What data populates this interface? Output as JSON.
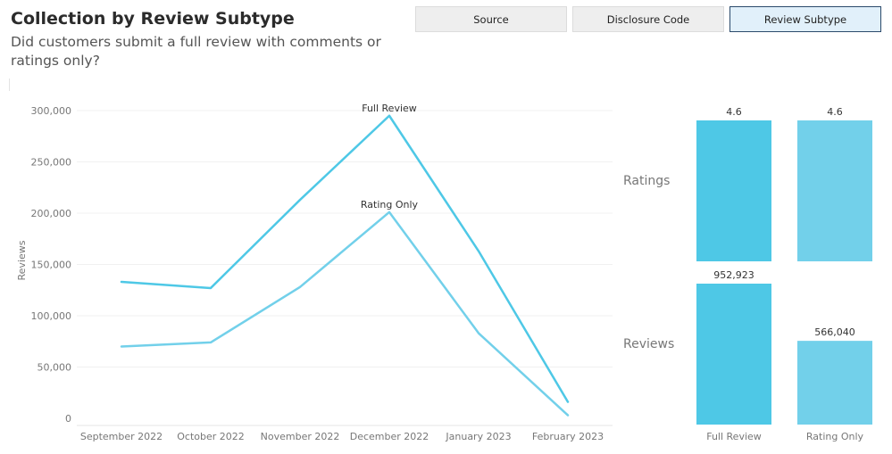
{
  "header": {
    "title": "Collection by Review Subtype",
    "subtitle": "Did customers submit a full review with comments or ratings only?"
  },
  "toolbar": {
    "buttons": [
      {
        "label": "Source",
        "active": false
      },
      {
        "label": "Disclosure Code",
        "active": false
      },
      {
        "label": "Review Subtype",
        "active": true
      }
    ]
  },
  "colors": {
    "full_review": "#4ec8e6",
    "rating_only": "#72d0ea",
    "active_button_bg": "#e1f0fa",
    "active_button_border": "#2b4a6b"
  },
  "chart_data": [
    {
      "type": "line",
      "ylabel": "Reviews",
      "x": [
        "September 2022",
        "October 2022",
        "November 2022",
        "December 2022",
        "January 2023",
        "February 2023"
      ],
      "yticks": [
        "0",
        "50,000",
        "100,000",
        "150,000",
        "200,000",
        "250,000",
        "300,000"
      ],
      "ylim": [
        0,
        300000
      ],
      "grid": true,
      "series": [
        {
          "name": "Full Review",
          "values": [
            133000,
            127000,
            213000,
            295000,
            163000,
            16000
          ]
        },
        {
          "name": "Rating Only",
          "values": [
            70000,
            74000,
            128000,
            201000,
            83000,
            3000
          ]
        }
      ]
    },
    {
      "type": "bar",
      "categories": [
        "Full Review",
        "Rating Only"
      ],
      "rows": [
        {
          "name": "Ratings",
          "values": [
            4.6,
            4.6
          ],
          "labels": [
            "4.6",
            "4.6"
          ],
          "ylim": [
            0,
            4.6
          ]
        },
        {
          "name": "Reviews",
          "values": [
            952923,
            566040
          ],
          "labels": [
            "952,923",
            "566,040"
          ],
          "ylim": [
            0,
            952923
          ]
        }
      ]
    }
  ]
}
